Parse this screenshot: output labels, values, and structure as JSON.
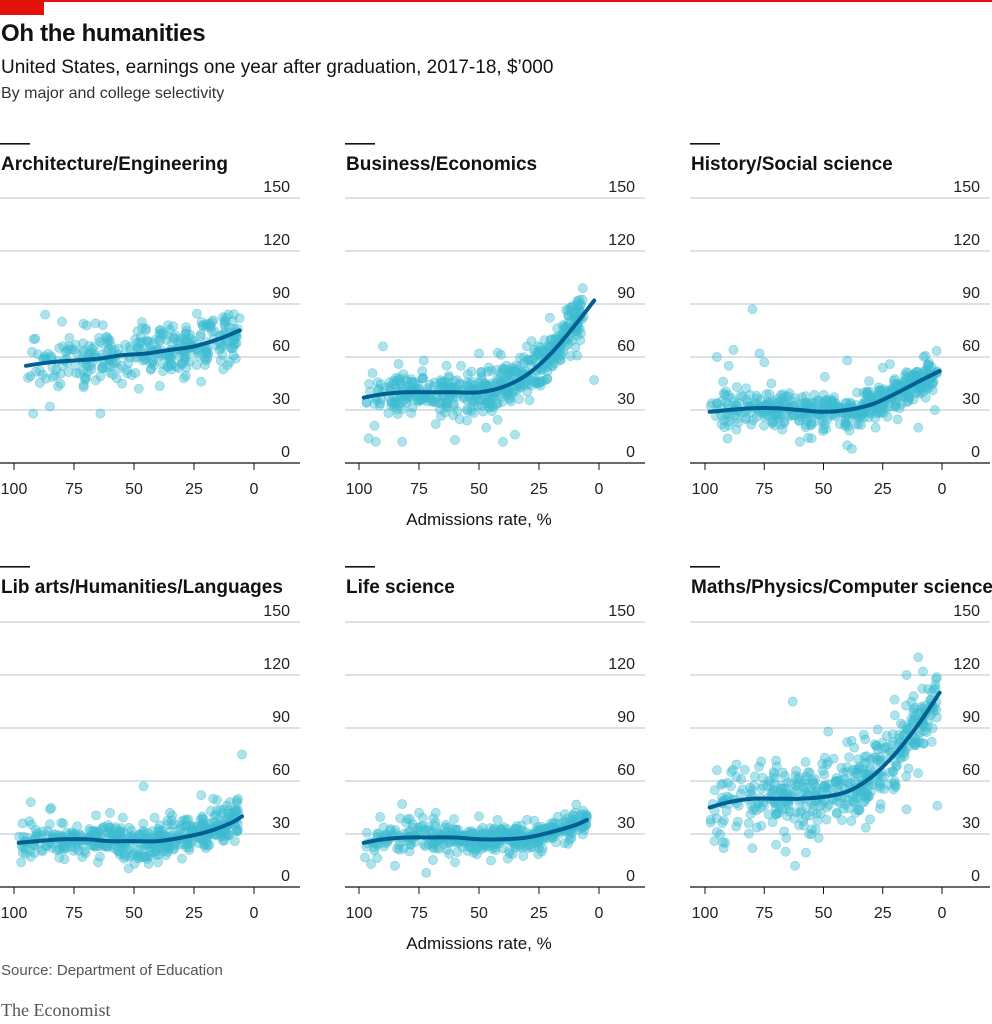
{
  "header": {
    "title": "Oh the humanities",
    "subtitle": "United States, earnings one year after graduation, 2017-18, $’000",
    "subsubtitle": "By major and college selectivity"
  },
  "footer": {
    "source": "Source: Department of Education",
    "brand": "The Economist"
  },
  "colors": {
    "dots": "#3ebcd2",
    "trend": "#006092",
    "accent": "#e3120b",
    "grid": "#b7c6cf"
  },
  "chart_data": [
    {
      "type": "scatter",
      "title": "Architecture/Engineering",
      "xlabel": "",
      "ylabel": "",
      "xlim": [
        100,
        0
      ],
      "ylim": [
        0,
        150
      ],
      "xticks": [
        100,
        75,
        50,
        25,
        0
      ],
      "yticks": [
        0,
        30,
        60,
        90,
        120,
        150
      ],
      "grid": true,
      "x_range": [
        95,
        6
      ],
      "cloud": {
        "center": 58,
        "spread": 7,
        "count": 320
      },
      "outliers": [
        [
          87,
          84
        ],
        [
          80,
          80
        ],
        [
          63,
          78
        ],
        [
          45,
          76
        ],
        [
          38,
          73
        ],
        [
          20,
          78
        ],
        [
          6,
          82
        ],
        [
          8,
          70
        ],
        [
          30,
          56
        ],
        [
          22,
          46
        ],
        [
          48,
          42
        ],
        [
          70,
          48
        ],
        [
          88,
          50
        ],
        [
          64,
          28
        ],
        [
          92,
          28
        ],
        [
          85,
          32
        ]
      ],
      "trend": [
        [
          95,
          55
        ],
        [
          85,
          57
        ],
        [
          75,
          58
        ],
        [
          65,
          59
        ],
        [
          55,
          61
        ],
        [
          45,
          62
        ],
        [
          35,
          64
        ],
        [
          25,
          66
        ],
        [
          15,
          70
        ],
        [
          6,
          75
        ]
      ]
    },
    {
      "type": "scatter",
      "title": "Business/Economics",
      "xlabel": "Admissions rate, %",
      "ylabel": "",
      "xlim": [
        100,
        0
      ],
      "ylim": [
        0,
        150
      ],
      "xticks": [
        100,
        75,
        50,
        25,
        0
      ],
      "yticks": [
        0,
        30,
        60,
        90,
        120,
        150
      ],
      "grid": true,
      "x_range": [
        98,
        6
      ],
      "cloud": {
        "center": 39,
        "spread": 7,
        "count": 520
      },
      "outliers": [
        [
          96,
          14
        ],
        [
          93,
          12
        ],
        [
          82,
          12
        ],
        [
          60,
          13
        ],
        [
          40,
          12
        ],
        [
          35,
          16
        ],
        [
          90,
          66
        ],
        [
          73,
          58
        ],
        [
          50,
          62
        ],
        [
          30,
          66
        ],
        [
          15,
          78
        ],
        [
          10,
          84
        ],
        [
          12,
          88
        ],
        [
          8,
          76
        ],
        [
          20,
          70
        ],
        [
          2,
          47
        ],
        [
          25,
          45
        ],
        [
          47,
          20
        ],
        [
          55,
          24
        ],
        [
          68,
          22
        ]
      ],
      "trend": [
        [
          98,
          37
        ],
        [
          90,
          39
        ],
        [
          80,
          40
        ],
        [
          70,
          40
        ],
        [
          60,
          40
        ],
        [
          50,
          40
        ],
        [
          40,
          43
        ],
        [
          30,
          50
        ],
        [
          20,
          62
        ],
        [
          10,
          78
        ],
        [
          2,
          92
        ]
      ]
    },
    {
      "type": "scatter",
      "title": "History/Social science",
      "xlabel": "",
      "ylabel": "",
      "xlim": [
        100,
        0
      ],
      "ylim": [
        0,
        150
      ],
      "xticks": [
        100,
        75,
        50,
        25,
        0
      ],
      "yticks": [
        0,
        30,
        60,
        90,
        120,
        150
      ],
      "grid": true,
      "x_range": [
        98,
        2
      ],
      "cloud": {
        "center": 30,
        "spread": 5,
        "count": 480
      },
      "outliers": [
        [
          80,
          87
        ],
        [
          95,
          60
        ],
        [
          90,
          55
        ],
        [
          88,
          64
        ],
        [
          75,
          57
        ],
        [
          77,
          62
        ],
        [
          72,
          45
        ],
        [
          40,
          58
        ],
        [
          25,
          54
        ],
        [
          22,
          56
        ],
        [
          15,
          48
        ],
        [
          5,
          50
        ],
        [
          60,
          12
        ],
        [
          40,
          10
        ],
        [
          38,
          8
        ],
        [
          55,
          14
        ],
        [
          3,
          30
        ],
        [
          10,
          20
        ],
        [
          28,
          20
        ],
        [
          93,
          22
        ]
      ],
      "trend": [
        [
          98,
          29
        ],
        [
          90,
          30
        ],
        [
          80,
          31
        ],
        [
          70,
          31
        ],
        [
          60,
          30
        ],
        [
          50,
          29
        ],
        [
          40,
          30
        ],
        [
          30,
          33
        ],
        [
          20,
          39
        ],
        [
          10,
          46
        ],
        [
          1,
          52
        ]
      ]
    },
    {
      "type": "scatter",
      "title": "Lib arts/Humanities/Languages",
      "xlabel": "",
      "ylabel": "",
      "xlim": [
        100,
        0
      ],
      "ylim": [
        0,
        150
      ],
      "xticks": [
        100,
        75,
        50,
        25,
        0
      ],
      "yticks": [
        0,
        30,
        60,
        90,
        120,
        150
      ],
      "grid": true,
      "x_range": [
        98,
        6
      ],
      "cloud": {
        "center": 26,
        "spread": 5,
        "count": 480
      },
      "outliers": [
        [
          5,
          75
        ],
        [
          46,
          57
        ],
        [
          22,
          52
        ],
        [
          17,
          50
        ],
        [
          10,
          48
        ],
        [
          93,
          48
        ],
        [
          85,
          44
        ],
        [
          60,
          42
        ],
        [
          35,
          42
        ],
        [
          97,
          14
        ],
        [
          65,
          14
        ],
        [
          40,
          14
        ],
        [
          30,
          16
        ],
        [
          20,
          22
        ],
        [
          8,
          26
        ],
        [
          12,
          38
        ]
      ],
      "trend": [
        [
          98,
          25
        ],
        [
          90,
          26
        ],
        [
          80,
          27
        ],
        [
          70,
          27
        ],
        [
          60,
          26
        ],
        [
          50,
          26
        ],
        [
          40,
          26
        ],
        [
          30,
          28
        ],
        [
          20,
          31
        ],
        [
          10,
          36
        ],
        [
          5,
          40
        ]
      ]
    },
    {
      "type": "scatter",
      "title": "Life science",
      "xlabel": "Admissions rate, %",
      "ylabel": "",
      "xlim": [
        100,
        0
      ],
      "ylim": [
        0,
        150
      ],
      "xticks": [
        100,
        75,
        50,
        25,
        0
      ],
      "yticks": [
        0,
        30,
        60,
        90,
        120,
        150
      ],
      "grid": true,
      "x_range": [
        98,
        5
      ],
      "cloud": {
        "center": 28,
        "spread": 4,
        "count": 420
      },
      "outliers": [
        [
          82,
          47
        ],
        [
          75,
          42
        ],
        [
          68,
          42
        ],
        [
          50,
          40
        ],
        [
          30,
          38
        ],
        [
          20,
          36
        ],
        [
          10,
          42
        ],
        [
          5,
          40
        ],
        [
          95,
          13
        ],
        [
          85,
          12
        ],
        [
          72,
          8
        ],
        [
          60,
          14
        ],
        [
          45,
          15
        ],
        [
          38,
          16
        ],
        [
          25,
          22
        ]
      ],
      "trend": [
        [
          98,
          25
        ],
        [
          90,
          27
        ],
        [
          80,
          28
        ],
        [
          70,
          28
        ],
        [
          60,
          28
        ],
        [
          50,
          27
        ],
        [
          40,
          27
        ],
        [
          30,
          28
        ],
        [
          20,
          31
        ],
        [
          10,
          35
        ],
        [
          5,
          38
        ]
      ]
    },
    {
      "type": "scatter",
      "title": "Maths/Physics/Computer science",
      "xlabel": "",
      "ylabel": "",
      "xlim": [
        100,
        0
      ],
      "ylim": [
        0,
        150
      ],
      "xticks": [
        100,
        75,
        50,
        25,
        0
      ],
      "yticks": [
        0,
        30,
        60,
        90,
        120,
        150
      ],
      "grid": true,
      "x_range": [
        98,
        2
      ],
      "cloud": {
        "center": 51,
        "spread": 10,
        "count": 450
      },
      "outliers": [
        [
          10,
          130
        ],
        [
          8,
          122
        ],
        [
          15,
          120
        ],
        [
          12,
          108
        ],
        [
          6,
          112
        ],
        [
          20,
          106
        ],
        [
          63,
          105
        ],
        [
          5,
          100
        ],
        [
          10,
          98
        ],
        [
          15,
          90
        ],
        [
          18,
          84
        ],
        [
          40,
          82
        ],
        [
          48,
          88
        ],
        [
          25,
          78
        ],
        [
          30,
          72
        ],
        [
          20,
          60
        ],
        [
          2,
          46
        ],
        [
          15,
          44
        ],
        [
          35,
          44
        ],
        [
          62,
          12
        ],
        [
          66,
          20
        ],
        [
          70,
          24
        ],
        [
          80,
          22
        ],
        [
          96,
          26
        ],
        [
          55,
          30
        ]
      ],
      "trend": [
        [
          98,
          45
        ],
        [
          90,
          48
        ],
        [
          80,
          50
        ],
        [
          70,
          50
        ],
        [
          60,
          50
        ],
        [
          50,
          51
        ],
        [
          40,
          54
        ],
        [
          30,
          62
        ],
        [
          20,
          75
        ],
        [
          10,
          92
        ],
        [
          1,
          110
        ]
      ]
    }
  ]
}
